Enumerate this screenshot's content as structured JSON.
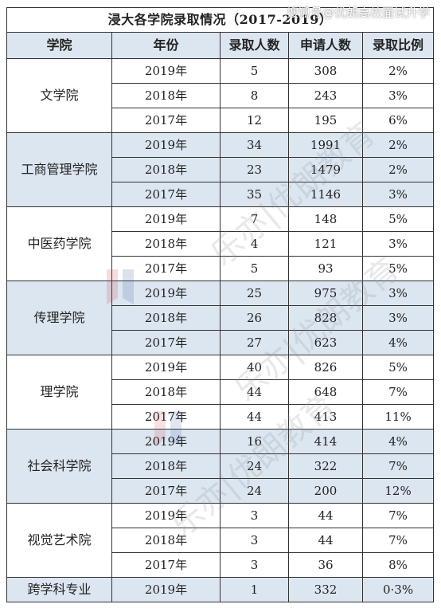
{
  "title": "浸大各学院录取情况（2017-2019）",
  "headers": [
    "学院",
    "年份",
    "录取人数",
    "申请人数",
    "录取比例"
  ],
  "groups": [
    {
      "college": "文学院",
      "shade": false,
      "rows": [
        {
          "year": "2019年",
          "admitted": "5",
          "applied": "308",
          "ratio": "2%"
        },
        {
          "year": "2018年",
          "admitted": "8",
          "applied": "243",
          "ratio": "3%"
        },
        {
          "year": "2017年",
          "admitted": "12",
          "applied": "195",
          "ratio": "6%"
        }
      ]
    },
    {
      "college": "工商管理学院",
      "shade": true,
      "rows": [
        {
          "year": "2019年",
          "admitted": "34",
          "applied": "1991",
          "ratio": "2%"
        },
        {
          "year": "2018年",
          "admitted": "23",
          "applied": "1479",
          "ratio": "2%"
        },
        {
          "year": "2017年",
          "admitted": "35",
          "applied": "1146",
          "ratio": "3%"
        }
      ]
    },
    {
      "college": "中医药学院",
      "shade": false,
      "rows": [
        {
          "year": "2019年",
          "admitted": "7",
          "applied": "148",
          "ratio": "5%"
        },
        {
          "year": "2018年",
          "admitted": "4",
          "applied": "121",
          "ratio": "3%"
        },
        {
          "year": "2017年",
          "admitted": "5",
          "applied": "93",
          "ratio": "5%"
        }
      ]
    },
    {
      "college": "传理学院",
      "shade": true,
      "rows": [
        {
          "year": "2019年",
          "admitted": "25",
          "applied": "975",
          "ratio": "3%"
        },
        {
          "year": "2018年",
          "admitted": "26",
          "applied": "828",
          "ratio": "3%"
        },
        {
          "year": "2017年",
          "admitted": "27",
          "applied": "623",
          "ratio": "4%"
        }
      ]
    },
    {
      "college": "理学院",
      "shade": false,
      "rows": [
        {
          "year": "2019年",
          "admitted": "40",
          "applied": "826",
          "ratio": "5%"
        },
        {
          "year": "2018年",
          "admitted": "44",
          "applied": "648",
          "ratio": "7%"
        },
        {
          "year": "2017年",
          "admitted": "44",
          "applied": "413",
          "ratio": "11%"
        }
      ]
    },
    {
      "college": "社会科学院",
      "shade": true,
      "rows": [
        {
          "year": "2019年",
          "admitted": "16",
          "applied": "414",
          "ratio": "4%"
        },
        {
          "year": "2018年",
          "admitted": "24",
          "applied": "322",
          "ratio": "7%"
        },
        {
          "year": "2017年",
          "admitted": "24",
          "applied": "200",
          "ratio": "12%"
        }
      ]
    },
    {
      "college": "视觉艺术院",
      "shade": false,
      "rows": [
        {
          "year": "2019年",
          "admitted": "3",
          "applied": "44",
          "ratio": "7%"
        },
        {
          "year": "2018年",
          "admitted": "3",
          "applied": "44",
          "ratio": "7%"
        },
        {
          "year": "2017年",
          "admitted": "3",
          "applied": "36",
          "ratio": "8%"
        }
      ]
    },
    {
      "college": "跨学科专业",
      "shade": true,
      "rows": [
        {
          "year": "2019年",
          "admitted": "1",
          "applied": "332",
          "ratio": "0·3%"
        }
      ]
    }
  ],
  "watermarks": {
    "top": "搜狐号@优朗高校面试升学",
    "diagonal": [
      "乐亦|优朗教育",
      "乐亦|优朗教育",
      "乐亦|优朗教育"
    ]
  }
}
